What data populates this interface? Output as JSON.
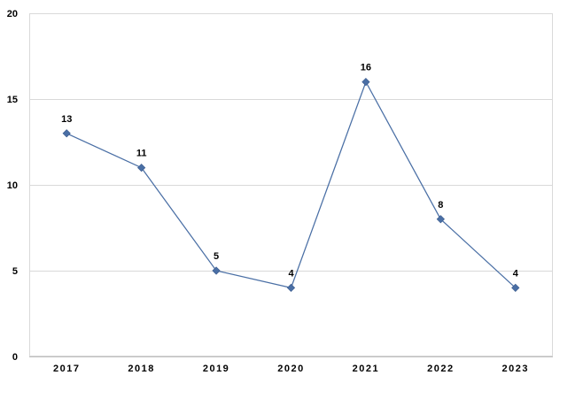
{
  "chart_data": {
    "type": "line",
    "title": "",
    "xlabel": "",
    "ylabel": "",
    "categories": [
      "2017",
      "2018",
      "2019",
      "2020",
      "2021",
      "2022",
      "2023"
    ],
    "series": [
      {
        "values": [
          13,
          11,
          5,
          4,
          16,
          8,
          4
        ],
        "color": "#4a6fa5",
        "marker": "diamond"
      }
    ],
    "ylim": [
      0,
      20
    ],
    "yticks": [
      0,
      5,
      10,
      15,
      20
    ],
    "grid": true,
    "legend": "none",
    "data_labels": true
  }
}
